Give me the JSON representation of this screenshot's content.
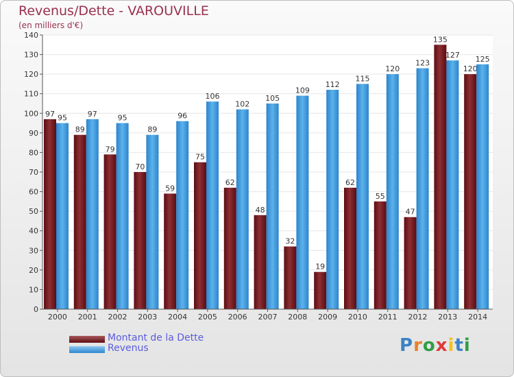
{
  "chart_data": {
    "type": "bar",
    "title": "Revenus/Dette - VAROUVILLE",
    "subtitle": "(en milliers d'€)",
    "categories": [
      "2000",
      "2001",
      "2002",
      "2003",
      "2004",
      "2005",
      "2006",
      "2007",
      "2008",
      "2009",
      "2010",
      "2011",
      "2012",
      "2013",
      "2014"
    ],
    "series": [
      {
        "name": "Montant de la Dette",
        "color": "#7b1a1f",
        "values": [
          97,
          89,
          79,
          70,
          59,
          75,
          62,
          48,
          32,
          19,
          62,
          55,
          47,
          135,
          120
        ]
      },
      {
        "name": "Revenus",
        "color": "#3d9be0",
        "values": [
          95,
          97,
          95,
          89,
          96,
          106,
          102,
          105,
          109,
          112,
          115,
          120,
          123,
          127,
          125
        ]
      }
    ],
    "ylim": [
      0,
      140
    ],
    "yticks": [
      0,
      10,
      20,
      30,
      40,
      50,
      60,
      70,
      80,
      90,
      100,
      110,
      120,
      130,
      140
    ],
    "grid": true,
    "legend_position": "bottom-left"
  },
  "legend": {
    "items": [
      {
        "label": "Montant de la Dette"
      },
      {
        "label": "Revenus"
      }
    ]
  },
  "logo": {
    "text": "Proxiti",
    "letter_colors": [
      "#3a83c4",
      "#e9822a",
      "#2f9e44",
      "#e03a3a",
      "#f0c419",
      "#3a83c4",
      "#2f9e44"
    ]
  }
}
